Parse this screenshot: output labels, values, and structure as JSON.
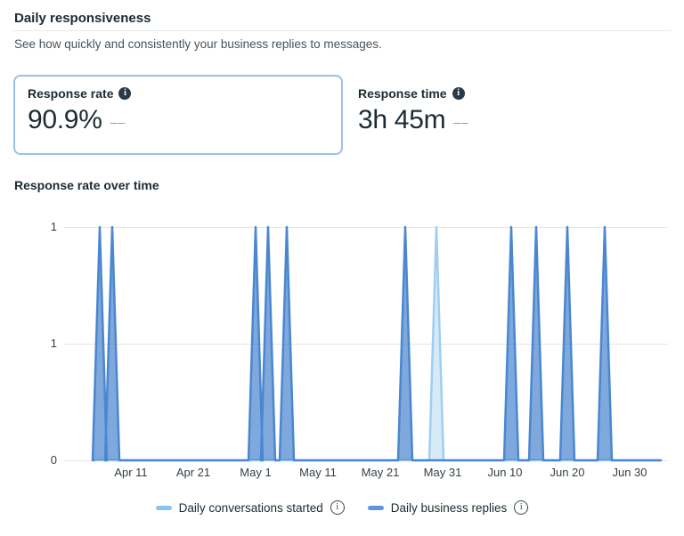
{
  "header": {
    "title": "Daily responsiveness",
    "subtitle": "See how quickly and consistently your business replies to messages."
  },
  "metrics": [
    {
      "id": "response-rate",
      "label": "Response rate",
      "value": "90.9%",
      "delta": "––",
      "selected": true
    },
    {
      "id": "response-time",
      "label": "Response time",
      "value": "3h 45m",
      "delta": "––",
      "selected": false
    }
  ],
  "icons": {
    "info_filled": "i",
    "info_outline": "i"
  },
  "chart_data": {
    "type": "area",
    "title": "Response rate over time",
    "x_tick_labels": [
      "Apr 11",
      "Apr 21",
      "May 1",
      "May 11",
      "May 21",
      "May 31",
      "Jun 10",
      "Jun 20",
      "Jun 30"
    ],
    "y_tick_labels": [
      "1",
      "1",
      "0"
    ],
    "ylim": [
      0,
      1
    ],
    "grid": true,
    "legend_position": "bottom",
    "data_start": "Apr 5",
    "data_end": "Jul 5",
    "series": [
      {
        "name": "Daily conversations started",
        "legend_color": "#85c6f0",
        "stroke": "#9fcef2",
        "fill": "#bbdcf3",
        "baseline_value": 0,
        "peak_value": 1,
        "peak_dates": [
          "May 30"
        ]
      },
      {
        "name": "Daily business replies",
        "legend_color": "#5e96d8",
        "stroke": "#4a87d0",
        "fill": "#2a6ec5",
        "baseline_value": 0,
        "peak_value": 1,
        "peak_dates": [
          "Apr 6",
          "Apr 8",
          "May 1",
          "May 3",
          "May 6",
          "May 25",
          "Jun 11",
          "Jun 15",
          "Jun 20",
          "Jun 26"
        ]
      }
    ]
  },
  "colors": {
    "card_border_selected": "#9cc0ea",
    "text_primary": "#1c2b33",
    "text_secondary": "#46535d",
    "delta_text": "#8d9aa5",
    "gridline": "#e4e6eb"
  }
}
